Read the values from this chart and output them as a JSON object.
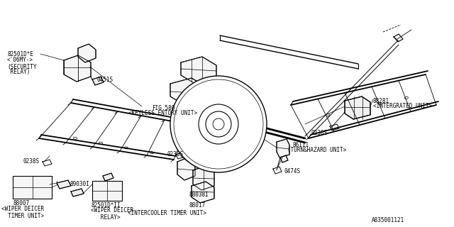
{
  "bg_color": "#ffffff",
  "line_color": "#000000",
  "line_color2": "#555555",
  "text_color": "#000000",
  "part_number": "A835001121",
  "labels": {
    "security_relay_part": "82501D*E",
    "security_relay_year": "<'06MY->",
    "security_relay_name": "(SECURITY\n RELAY)",
    "part_0451s": "0451S",
    "keyless_fig": "FIG.580",
    "keyless_name": "<KEYLESS ENTORY UNIT>",
    "intergrated_part": "88281",
    "intergrated_name": "<INTERGRATED UNIT>",
    "part_0238s": "0238S",
    "wiper_timer_name": "<WIPER DEICER\n  TIMER UNIT>",
    "part_88007": "88007",
    "part_89030i": "89030I",
    "wiper_relay_part": "82501D*II",
    "wiper_relay_name": "<WIPER DEICER\n   RELAY>",
    "part_88038i": "88038I",
    "part_88017": "88017",
    "intercooler_name": "<INTERCOOLER TIMER UNIT>",
    "turn_hazard_part": "86111",
    "turn_hazard_name": "(TURN&HAZARD UNIT>",
    "part_0474s": "0474S"
  },
  "font_size": 5.5
}
